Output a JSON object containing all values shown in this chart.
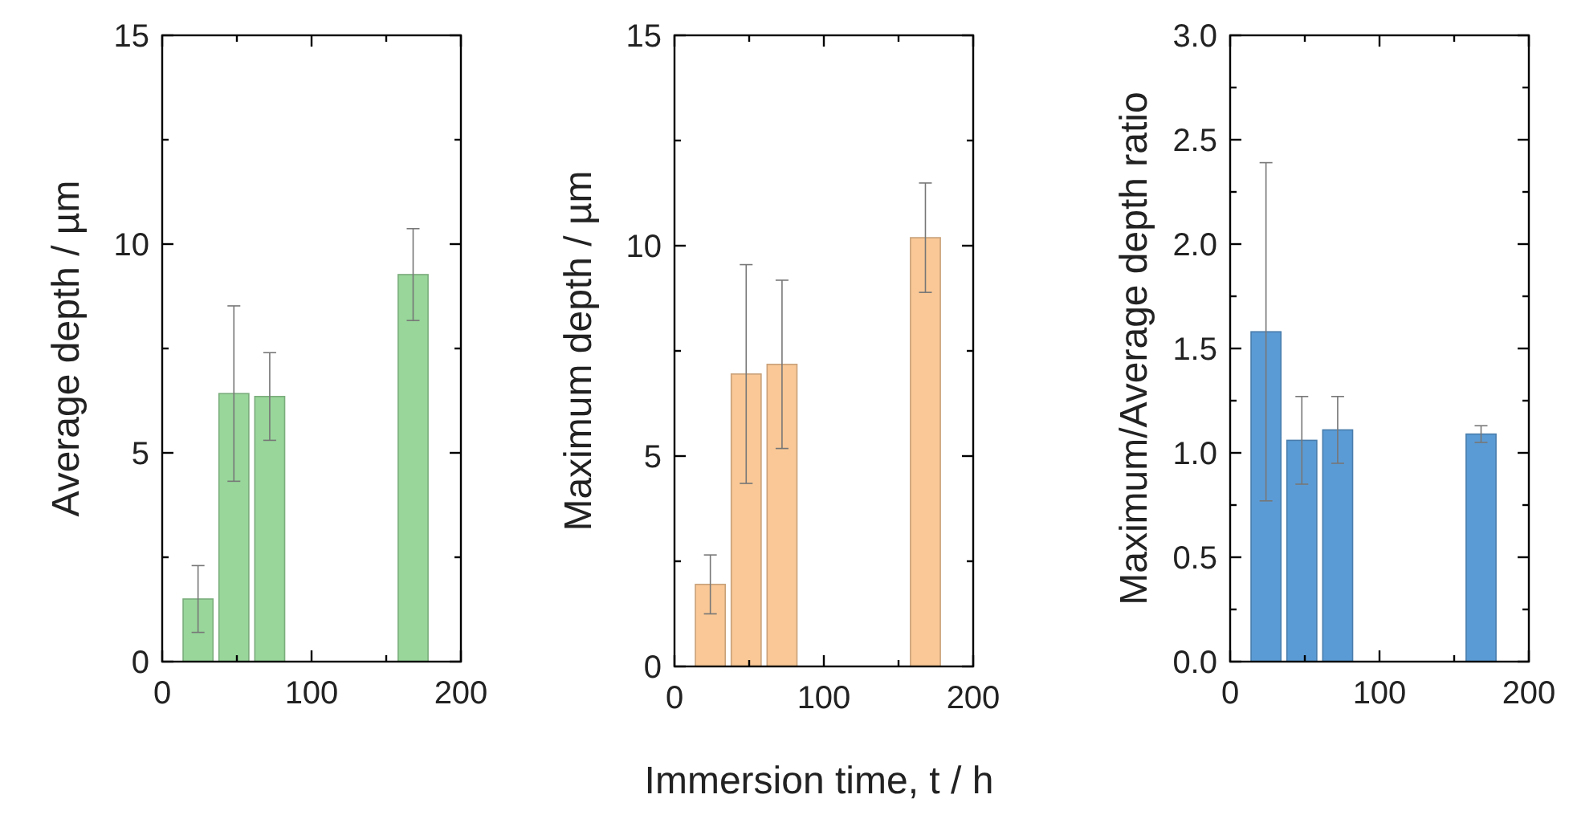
{
  "chart_data": [
    {
      "type": "bar",
      "ylabel": "Average depth / µm",
      "x": [
        24,
        48,
        72,
        168
      ],
      "values": [
        1.5,
        6.42,
        6.35,
        9.27
      ],
      "errors": [
        0.8,
        2.1,
        1.05,
        1.1
      ],
      "color": "#98d69a",
      "xlim": [
        0,
        200
      ],
      "xticks": [
        0,
        100,
        200
      ],
      "ylim": [
        0,
        15
      ],
      "yticks": [
        0,
        5,
        10,
        15
      ]
    },
    {
      "type": "bar",
      "ylabel": "Maximum depth / µm",
      "xlabel": "Immersion time, t / h",
      "x": [
        24,
        48,
        72,
        168
      ],
      "values": [
        1.95,
        6.95,
        7.18,
        10.19
      ],
      "errors": [
        0.7,
        2.6,
        2.0,
        1.3
      ],
      "color": "#f9c896",
      "xlim": [
        0,
        200
      ],
      "xticks": [
        0,
        100,
        200
      ],
      "ylim": [
        0,
        15
      ],
      "yticks": [
        0,
        5,
        10,
        15
      ]
    },
    {
      "type": "bar",
      "ylabel": "Maximum/Average depth ratio",
      "x": [
        24,
        48,
        72,
        168
      ],
      "values": [
        1.58,
        1.06,
        1.11,
        1.09
      ],
      "errors": [
        0.81,
        0.21,
        0.16,
        0.04
      ],
      "color": "#5b9bd5",
      "xlim": [
        0,
        200
      ],
      "xticks": [
        0,
        100,
        200
      ],
      "ylim": [
        0,
        3
      ],
      "yticks": [
        {
          "value": 0,
          "label": "0.0"
        },
        {
          "value": 0.5,
          "label": "0.5"
        },
        {
          "value": 1,
          "label": "1.0"
        },
        {
          "value": 1.5,
          "label": "1.5"
        },
        {
          "value": 2,
          "label": "2.0"
        },
        {
          "value": 2.5,
          "label": "2.5"
        },
        {
          "value": 3,
          "label": "3.0"
        }
      ]
    }
  ]
}
